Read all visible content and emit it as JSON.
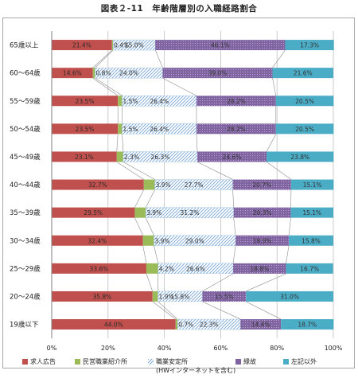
{
  "title": "図表２-11　年齢階層別の入職経路割合",
  "colors": {
    "recruit_ad": "#c0504d",
    "private_agency": "#9bbb59",
    "public_agency": "#9cc3e6",
    "connection": "#8064a2",
    "other": "#4bacc6"
  },
  "legend": [
    {
      "label": "求人広告",
      "key": "recruit_ad"
    },
    {
      "label": "民営職業紹介所",
      "key": "private_agency"
    },
    {
      "label": "職業安定所",
      "sub": "(HWインターネットを含む)",
      "key": "public_agency"
    },
    {
      "label": "縁故",
      "key": "connection"
    },
    {
      "label": "左記以外",
      "key": "other"
    }
  ],
  "chart_data": {
    "type": "bar",
    "orientation": "horizontal",
    "stacked": "percent",
    "categories": [
      "65歳以上",
      "60～64歳",
      "55～59歳",
      "50～54歳",
      "45～49歳",
      "40～44歳",
      "35～39歳",
      "30～34歳",
      "25～29歳",
      "20～24歳",
      "19歳以下"
    ],
    "series": [
      {
        "name": "求人広告",
        "key": "recruit_ad",
        "values": [
          21.4,
          14.6,
          23.5,
          23.5,
          23.1,
          32.7,
          29.5,
          32.4,
          33.6,
          35.8,
          44.0
        ]
      },
      {
        "name": "民営職業紹介所",
        "key": "private_agency",
        "values": [
          0.4,
          0.8,
          1.5,
          1.5,
          2.3,
          3.9,
          3.9,
          3.9,
          4.2,
          1.9,
          0.7
        ]
      },
      {
        "name": "職業安定所",
        "key": "public_agency",
        "values": [
          15.0,
          24.0,
          26.4,
          26.4,
          26.3,
          27.7,
          31.2,
          29.0,
          26.6,
          15.8,
          22.3
        ]
      },
      {
        "name": "縁故",
        "key": "connection",
        "values": [
          46.1,
          39.0,
          28.2,
          28.2,
          24.6,
          20.7,
          20.3,
          18.9,
          18.8,
          15.5,
          14.4
        ]
      },
      {
        "name": "左記以外",
        "key": "other",
        "values": [
          17.3,
          21.6,
          20.5,
          20.5,
          23.8,
          15.1,
          15.1,
          15.8,
          16.7,
          31.0,
          18.7
        ]
      }
    ],
    "data_labels": [
      [
        "21.4%",
        "0.4%",
        "15.0%",
        "46.1%",
        "17.3%"
      ],
      [
        "14.6%",
        "0.8%",
        "24.0%",
        "39.0%",
        "21.6%"
      ],
      [
        "23.5%",
        "1.5%",
        "26.4%",
        "28.2%",
        "20.5%"
      ],
      [
        "23.5%",
        "1.5%",
        "26.4%",
        "28.2%",
        "20.5%"
      ],
      [
        "23.1%",
        "2.3%",
        "26.3%",
        "24.6%",
        "23.8%"
      ],
      [
        "32.7%",
        "3.9%",
        "27.7%",
        "20.7%",
        "15.1%"
      ],
      [
        "29.5%",
        "3.9%",
        "31.2%",
        "20.3%",
        "15.1%"
      ],
      [
        "32.4%",
        "3.9%",
        "29.0%",
        "18.9%",
        "15.8%"
      ],
      [
        "33.6%",
        "4.2%",
        "26.6%",
        "18.8%",
        "16.7%"
      ],
      [
        "35.8%",
        "1.9%",
        "15.8%",
        "15.5%",
        "31.0%"
      ],
      [
        "44.0%",
        "0.7%",
        "22.3%",
        "14.4%",
        "18.7%"
      ]
    ],
    "x_ticks": [
      "0%",
      "20%",
      "40%",
      "60%",
      "80%",
      "100%"
    ],
    "xlim": [
      0,
      100
    ],
    "grid": true,
    "series_lines": true,
    "legend_position": "bottom"
  }
}
